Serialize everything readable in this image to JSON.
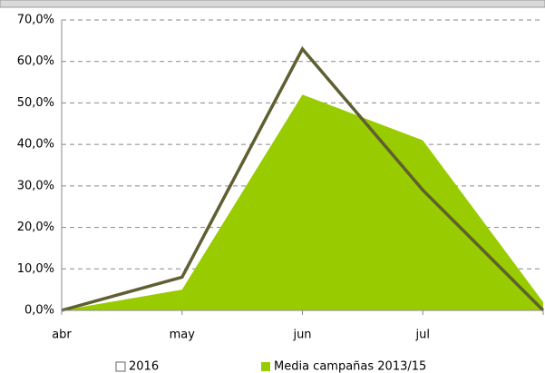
{
  "chart_data": {
    "type": "line",
    "categories": [
      "abr",
      "may",
      "jun",
      "jul",
      null
    ],
    "series": [
      {
        "name": "2016",
        "type": "line",
        "color": "#5f5f32",
        "values": [
          0,
          8,
          63,
          29,
          0
        ]
      },
      {
        "name": "Media campañas 2013/15",
        "type": "area",
        "color": "#99cc00",
        "values": [
          0,
          5,
          52,
          41,
          2
        ]
      }
    ],
    "ylim": [
      0,
      70
    ],
    "yticks": [
      {
        "value": 0,
        "label": "0,0%"
      },
      {
        "value": 10,
        "label": "10,0%"
      },
      {
        "value": 20,
        "label": "20,0%"
      },
      {
        "value": 30,
        "label": "30,0%"
      },
      {
        "value": 40,
        "label": "40,0%"
      },
      {
        "value": 50,
        "label": "50,0%"
      },
      {
        "value": 60,
        "label": "60,0%"
      },
      {
        "value": 70,
        "label": "70,0%"
      }
    ],
    "grid": true,
    "legend": "bottom"
  }
}
